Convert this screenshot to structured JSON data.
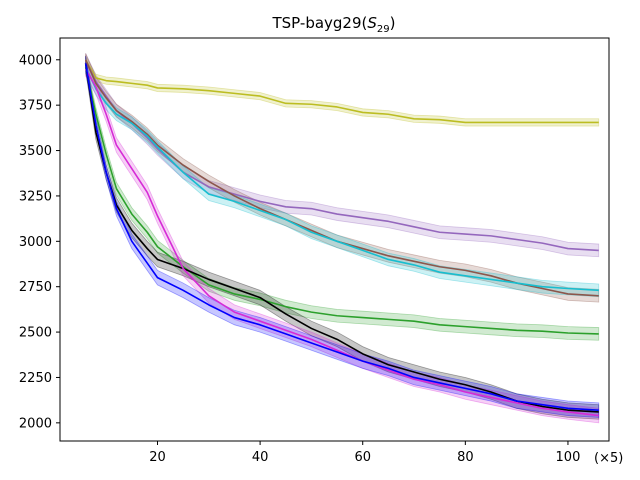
{
  "chart_data": {
    "type": "line",
    "title": "TSP-bayg29(",
    "title_math": "S",
    "title_sub": "29",
    "title_close": ")",
    "xlabel": "",
    "ylabel": "",
    "x_multiplier": "(×5)",
    "xlim": [
      1,
      108
    ],
    "ylim": [
      1900,
      4120
    ],
    "xticks": [
      20,
      40,
      60,
      80,
      100
    ],
    "yticks": [
      2000,
      2250,
      2500,
      2750,
      3000,
      3250,
      3500,
      3750,
      4000
    ],
    "x": [
      6,
      8,
      10,
      12,
      15,
      18,
      20,
      25,
      30,
      35,
      40,
      45,
      50,
      55,
      60,
      65,
      70,
      75,
      80,
      85,
      90,
      95,
      100,
      106
    ],
    "series": [
      {
        "name": "olive",
        "color": "#bcbd22",
        "band": 20,
        "values": [
          4000,
          3900,
          3885,
          3880,
          3870,
          3860,
          3845,
          3840,
          3830,
          3815,
          3800,
          3760,
          3755,
          3740,
          3710,
          3700,
          3675,
          3670,
          3655,
          3655,
          3655,
          3655,
          3655,
          3655
        ]
      },
      {
        "name": "purple",
        "color": "#9467bd",
        "band": 35,
        "values": [
          4000,
          3880,
          3800,
          3720,
          3650,
          3570,
          3510,
          3380,
          3300,
          3260,
          3220,
          3190,
          3180,
          3150,
          3130,
          3110,
          3080,
          3050,
          3040,
          3030,
          3010,
          2990,
          2960,
          2950
        ]
      },
      {
        "name": "brown",
        "color": "#8c564b",
        "band": 35,
        "values": [
          4000,
          3870,
          3790,
          3720,
          3660,
          3590,
          3530,
          3420,
          3330,
          3250,
          3180,
          3120,
          3060,
          3000,
          2960,
          2920,
          2890,
          2860,
          2840,
          2810,
          2770,
          2740,
          2710,
          2700
        ]
      },
      {
        "name": "cyan",
        "color": "#17becf",
        "band": 35,
        "values": [
          3960,
          3840,
          3760,
          3700,
          3650,
          3580,
          3520,
          3380,
          3260,
          3220,
          3170,
          3120,
          3050,
          3000,
          2950,
          2900,
          2870,
          2830,
          2810,
          2790,
          2770,
          2750,
          2740,
          2730
        ]
      },
      {
        "name": "green",
        "color": "#2ca02c",
        "band": 35,
        "values": [
          3960,
          3700,
          3480,
          3290,
          3150,
          3050,
          2970,
          2860,
          2760,
          2710,
          2680,
          2640,
          2610,
          2590,
          2580,
          2570,
          2560,
          2540,
          2530,
          2520,
          2510,
          2505,
          2495,
          2490
        ]
      },
      {
        "name": "black",
        "color": "#000000",
        "band": 40,
        "values": [
          3980,
          3600,
          3380,
          3200,
          3060,
          2960,
          2900,
          2850,
          2790,
          2740,
          2690,
          2600,
          2520,
          2460,
          2380,
          2320,
          2280,
          2240,
          2210,
          2170,
          2120,
          2090,
          2070,
          2060
        ]
      },
      {
        "name": "magenta",
        "color": "#d62bd6",
        "band": 40,
        "values": [
          3950,
          3850,
          3700,
          3530,
          3400,
          3270,
          3140,
          2850,
          2700,
          2610,
          2560,
          2510,
          2460,
          2400,
          2340,
          2290,
          2240,
          2210,
          2170,
          2140,
          2110,
          2080,
          2060,
          2040
        ]
      },
      {
        "name": "blue",
        "color": "#0000ff",
        "band": 40,
        "values": [
          3980,
          3640,
          3380,
          3180,
          3000,
          2880,
          2800,
          2730,
          2650,
          2580,
          2540,
          2490,
          2440,
          2390,
          2340,
          2300,
          2250,
          2220,
          2190,
          2160,
          2120,
          2100,
          2080,
          2070
        ]
      }
    ]
  }
}
